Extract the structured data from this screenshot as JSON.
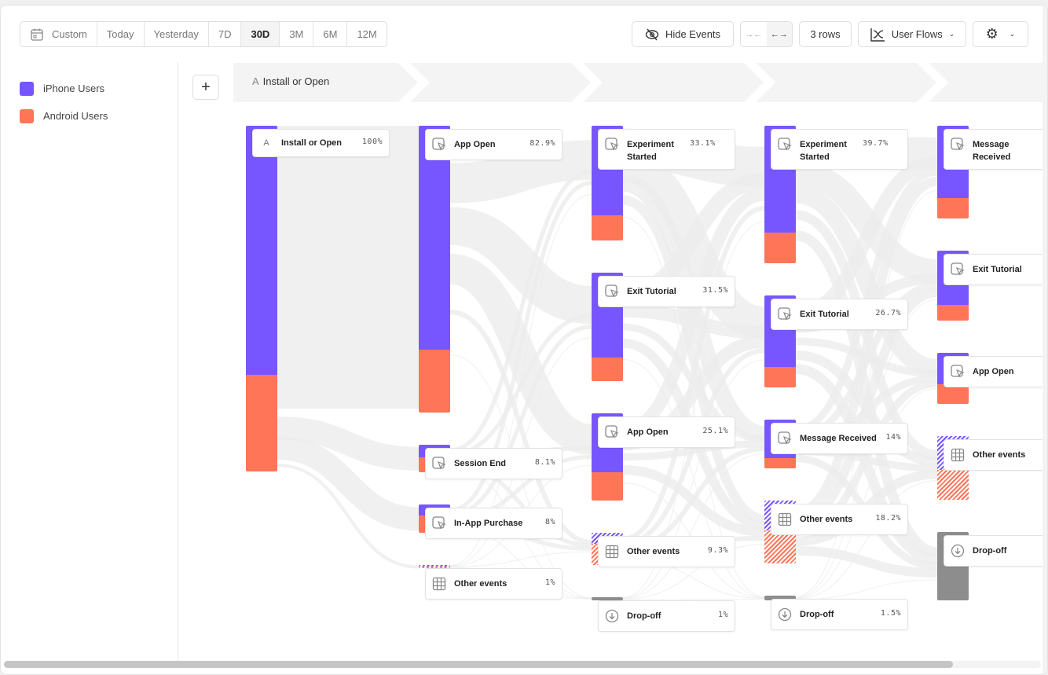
{
  "toolbar": {
    "date_ranges": [
      {
        "label": "Custom",
        "icon": "calendar-icon"
      },
      {
        "label": "Today"
      },
      {
        "label": "Yesterday"
      },
      {
        "label": "7D"
      },
      {
        "label": "30D",
        "active": true
      },
      {
        "label": "3M"
      },
      {
        "label": "6M"
      },
      {
        "label": "12M"
      }
    ],
    "hide_events": "Hide Events",
    "rows": "3 rows",
    "view": "User Flows"
  },
  "legend": [
    {
      "label": "iPhone Users",
      "color": "#7856ff"
    },
    {
      "label": "Android Users",
      "color": "#ff7557"
    }
  ],
  "step": {
    "letter": "A",
    "label": "Install or Open"
  },
  "columns": [
    {
      "nodes": [
        {
          "label": "Install or Open",
          "pct": "100%",
          "value": 100,
          "iphone": 0.72,
          "icon": "letter-a"
        }
      ]
    },
    {
      "nodes": [
        {
          "label": "App Open",
          "pct": "82.9%",
          "value": 82.9,
          "iphone": 0.78,
          "icon": "cursor-icon"
        },
        {
          "label": "Session End",
          "pct": "8.1%",
          "value": 8.1,
          "iphone": 0.45,
          "icon": "cursor-icon"
        },
        {
          "label": "In-App Purchase",
          "pct": "8%",
          "value": 8,
          "iphone": 0.4,
          "icon": "cursor-icon"
        },
        {
          "label": "Other events",
          "pct": "1%",
          "value": 1,
          "iphone": 0.5,
          "icon": "grid-icon",
          "kind": "other"
        }
      ]
    },
    {
      "nodes": [
        {
          "label": "Experiment Started",
          "pct": "33.1%",
          "value": 33.1,
          "iphone": 0.78,
          "icon": "cursor-icon",
          "two": true
        },
        {
          "label": "Exit Tutorial",
          "pct": "31.5%",
          "value": 31.5,
          "iphone": 0.78,
          "icon": "cursor-icon"
        },
        {
          "label": "App Open",
          "pct": "25.1%",
          "value": 25.1,
          "iphone": 0.68,
          "icon": "cursor-icon"
        },
        {
          "label": "Other events",
          "pct": "9.3%",
          "value": 9.3,
          "iphone": 0.35,
          "icon": "grid-icon",
          "kind": "other"
        },
        {
          "label": "Drop-off",
          "pct": "1%",
          "value": 1,
          "icon": "arrow-down-circle-icon",
          "kind": "drop"
        }
      ]
    },
    {
      "nodes": [
        {
          "label": "Experiment Started",
          "pct": "39.7%",
          "value": 39.7,
          "iphone": 0.78,
          "icon": "cursor-icon",
          "two": true
        },
        {
          "label": "Exit Tutorial",
          "pct": "26.7%",
          "value": 26.7,
          "iphone": 0.78,
          "icon": "cursor-icon"
        },
        {
          "label": "Message Received",
          "pct": "14%",
          "value": 14,
          "iphone": 0.79,
          "icon": "cursor-icon"
        },
        {
          "label": "Other events",
          "pct": "18.2%",
          "value": 18.2,
          "iphone": 0.48,
          "icon": "grid-icon",
          "kind": "other"
        },
        {
          "label": "Drop-off",
          "pct": "1.5%",
          "value": 1.5,
          "icon": "arrow-down-circle-icon",
          "kind": "drop"
        }
      ]
    },
    {
      "nodes": [
        {
          "label": "Message Received",
          "value": 26.8,
          "iphone": 0.78,
          "icon": "cursor-icon",
          "two": true
        },
        {
          "label": "Exit Tutorial",
          "value": 20.2,
          "iphone": 0.78,
          "icon": "cursor-icon"
        },
        {
          "label": "App Open",
          "value": 14.8,
          "iphone": 0.62,
          "icon": "cursor-icon"
        },
        {
          "label": "Other events",
          "value": 18.4,
          "iphone": 0.53,
          "icon": "grid-icon",
          "kind": "other"
        },
        {
          "label": "Drop-off",
          "value": 19.8,
          "icon": "arrow-down-circle-icon",
          "kind": "drop"
        }
      ]
    }
  ]
}
